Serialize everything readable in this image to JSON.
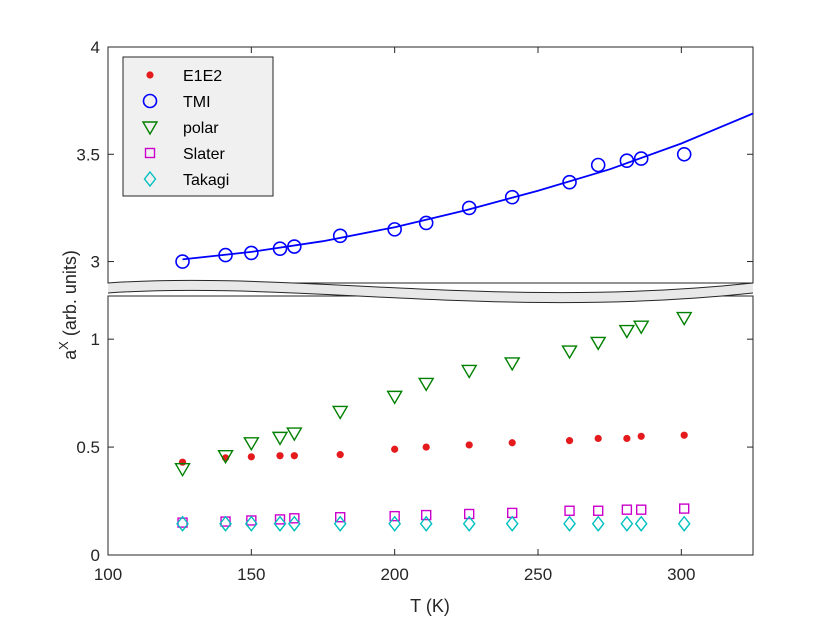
{
  "chart_data": {
    "type": "scatter",
    "title": "",
    "xlabel": "T (K)",
    "ylabel_base": "a",
    "ylabel_sup": "X",
    "ylabel_rest": " (arb. units)",
    "xlim": [
      100,
      325
    ],
    "x_ticks": [
      "100",
      "150",
      "200",
      "250",
      "300"
    ],
    "broken_y_axis": true,
    "upper_panel": {
      "ylim": [
        2.9,
        4.0
      ],
      "y_ticks": [
        "3",
        "3.5",
        "4"
      ]
    },
    "lower_panel": {
      "ylim": [
        0,
        1.2
      ],
      "y_ticks": [
        "0",
        "0.5",
        "1"
      ]
    },
    "legend_position": "top-left",
    "x": [
      126,
      141,
      150,
      160,
      165,
      181,
      200,
      211,
      226,
      241,
      261,
      271,
      281,
      286,
      301
    ],
    "series": [
      {
        "name": "E1E2",
        "marker": "dot",
        "color": "#e41a1c",
        "panel": "lower",
        "values": [
          0.43,
          0.45,
          0.455,
          0.46,
          0.46,
          0.465,
          0.49,
          0.5,
          0.51,
          0.52,
          0.53,
          0.54,
          0.54,
          0.55,
          0.555
        ]
      },
      {
        "name": "TMI",
        "marker": "circle",
        "color": "#0000ff",
        "panel": "upper",
        "values": [
          3.0,
          3.03,
          3.04,
          3.06,
          3.07,
          3.12,
          3.15,
          3.18,
          3.25,
          3.3,
          3.37,
          3.45,
          3.47,
          3.48,
          3.5
        ],
        "fit_line": {
          "x": [
            126,
            150,
            175,
            200,
            225,
            250,
            275,
            300,
            325
          ],
          "y": [
            3.01,
            3.045,
            3.095,
            3.16,
            3.24,
            3.33,
            3.43,
            3.55,
            3.69
          ]
        }
      },
      {
        "name": "polar",
        "marker": "triangle-down",
        "color": "#008000",
        "panel": "lower",
        "values": [
          0.4,
          0.46,
          0.52,
          0.545,
          0.565,
          0.665,
          0.735,
          0.795,
          0.855,
          0.89,
          0.945,
          0.985,
          1.04,
          1.06,
          1.1
        ]
      },
      {
        "name": "Slater",
        "marker": "square",
        "color": "#cc00cc",
        "panel": "lower",
        "values": [
          0.15,
          0.155,
          0.16,
          0.165,
          0.17,
          0.175,
          0.18,
          0.185,
          0.19,
          0.195,
          0.205,
          0.205,
          0.21,
          0.21,
          0.215
        ]
      },
      {
        "name": "Takagi",
        "marker": "diamond",
        "color": "#00bfbf",
        "panel": "lower",
        "values": [
          0.145,
          0.145,
          0.145,
          0.145,
          0.145,
          0.145,
          0.145,
          0.145,
          0.145,
          0.145,
          0.145,
          0.145,
          0.145,
          0.145,
          0.145
        ]
      }
    ]
  }
}
